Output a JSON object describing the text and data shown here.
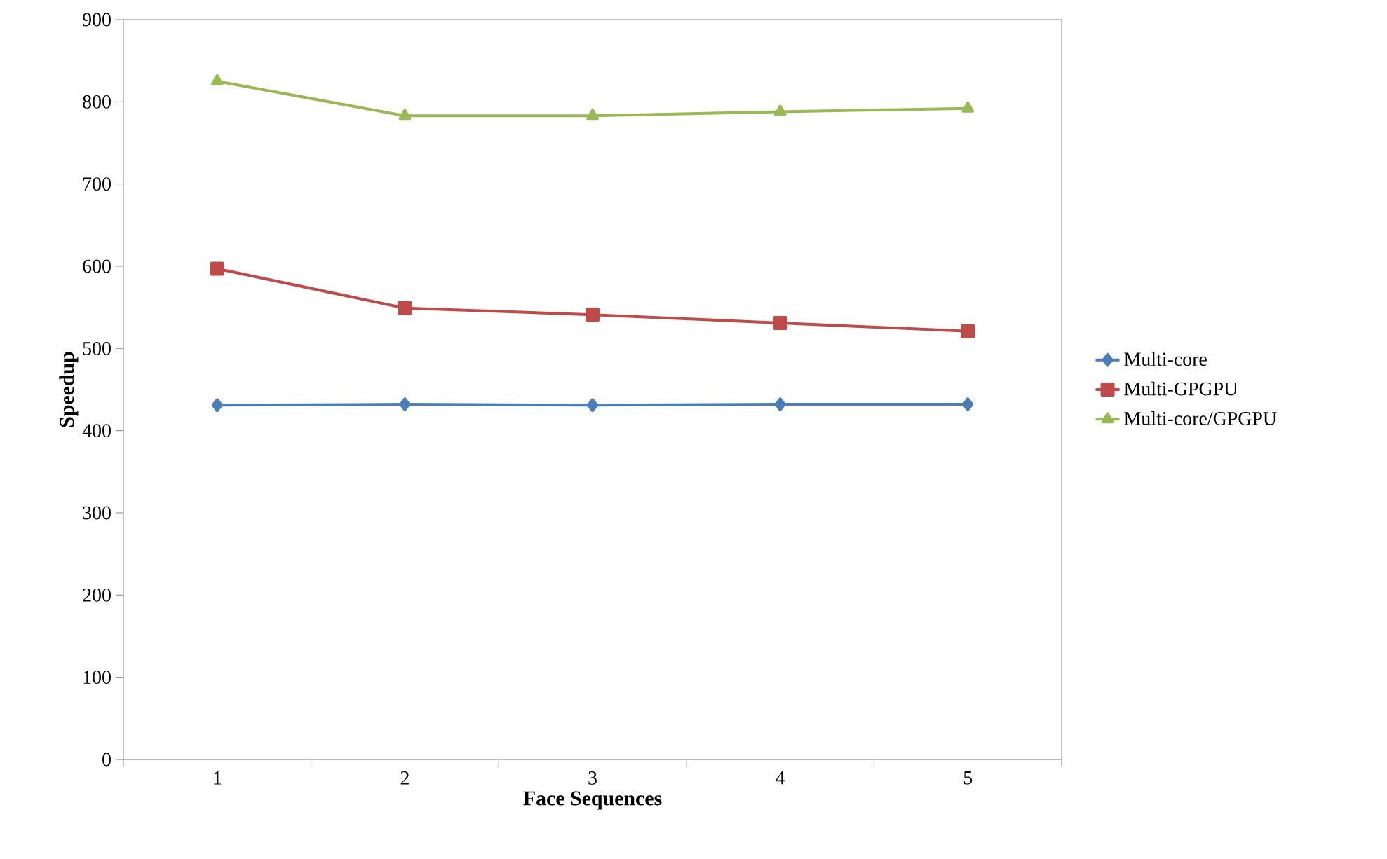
{
  "chart_data": {
    "type": "line",
    "xlabel": "Face Sequences",
    "ylabel": "Speedup",
    "categories": [
      "1",
      "2",
      "3",
      "4",
      "5"
    ],
    "series": [
      {
        "name": "Multi-core",
        "color": "#4a7ebb",
        "marker": "diamond",
        "values": [
          431,
          432,
          431,
          432,
          432
        ]
      },
      {
        "name": "Multi-GPGPU",
        "color": "#be4b48",
        "marker": "square",
        "values": [
          597,
          549,
          541,
          531,
          521
        ]
      },
      {
        "name": "Multi-core/GPGPU",
        "color": "#98b954",
        "marker": "triangle",
        "values": [
          825,
          783,
          783,
          788,
          792
        ]
      }
    ],
    "ylim": [
      0,
      900
    ],
    "yticks": [
      0,
      100,
      200,
      300,
      400,
      500,
      600,
      700,
      800,
      900
    ],
    "grid": false,
    "legend": "right",
    "line_style": "solid"
  }
}
